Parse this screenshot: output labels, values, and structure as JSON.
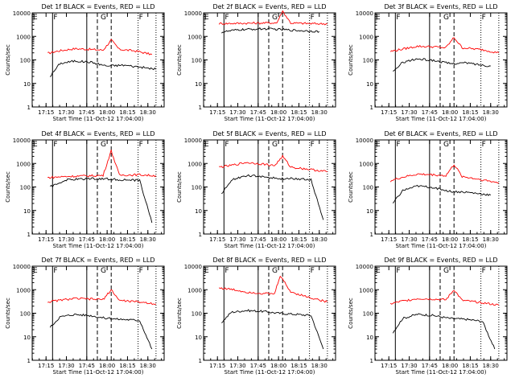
{
  "chart_data": {
    "type": "line",
    "layout": "3x3 grid",
    "y_scale": "log",
    "ylim": [
      1,
      10000
    ],
    "y_ticks": [
      1,
      10,
      100,
      1000,
      10000
    ],
    "y_tick_labels": [
      "1",
      "10",
      "100",
      "1000",
      "10000"
    ],
    "x_ticks": [
      "17:15",
      "17:30",
      "17:45",
      "18:00",
      "18:15",
      "18:30"
    ],
    "ylabel": "Counts/sec",
    "xlabel": "Start Time (11-Oct-12 17:04:00)",
    "colors": {
      "events": "#000000",
      "lld": "#ff0000",
      "markers": "#000000"
    },
    "panels": [
      {
        "title": "Det 1f BLACK = Events, RED = LLD",
        "markers": [
          "E",
          "F",
          "G",
          "F"
        ],
        "lld": [
          [
            17.27,
            190
          ],
          [
            17.4,
            240
          ],
          [
            17.6,
            300
          ],
          [
            17.8,
            280
          ],
          [
            17.95,
            260
          ],
          [
            18.05,
            700
          ],
          [
            18.15,
            280
          ],
          [
            18.35,
            240
          ],
          [
            18.55,
            170
          ]
        ],
        "events": [
          [
            17.3,
            20
          ],
          [
            17.42,
            70
          ],
          [
            17.6,
            90
          ],
          [
            17.8,
            80
          ],
          [
            18.0,
            55
          ],
          [
            18.2,
            60
          ],
          [
            18.4,
            50
          ],
          [
            18.6,
            40
          ]
        ]
      },
      {
        "title": "Det 2f BLACK = Events, RED = LLD",
        "markers": [
          "E",
          "F",
          "G",
          "F"
        ],
        "lld": [
          [
            17.27,
            3500
          ],
          [
            17.5,
            3600
          ],
          [
            17.8,
            3700
          ],
          [
            17.98,
            3800
          ],
          [
            18.05,
            12000
          ],
          [
            18.15,
            3700
          ],
          [
            18.4,
            3500
          ],
          [
            18.6,
            3400
          ]
        ],
        "events": [
          [
            17.3,
            1500
          ],
          [
            17.5,
            1900
          ],
          [
            17.8,
            2100
          ],
          [
            18.0,
            2000
          ],
          [
            18.2,
            1800
          ],
          [
            18.4,
            1700
          ],
          [
            18.5,
            1600
          ]
        ]
      },
      {
        "title": "Det 3f BLACK = Events, RED = LLD",
        "markers": [
          "E",
          "F",
          "G",
          "F"
        ],
        "lld": [
          [
            17.27,
            230
          ],
          [
            17.4,
            280
          ],
          [
            17.6,
            380
          ],
          [
            17.8,
            360
          ],
          [
            17.95,
            330
          ],
          [
            18.05,
            900
          ],
          [
            18.15,
            330
          ],
          [
            18.4,
            270
          ],
          [
            18.6,
            200
          ]
        ],
        "events": [
          [
            17.3,
            30
          ],
          [
            17.42,
            80
          ],
          [
            17.6,
            110
          ],
          [
            17.8,
            95
          ],
          [
            18.0,
            70
          ],
          [
            18.2,
            75
          ],
          [
            18.4,
            60
          ],
          [
            18.5,
            55
          ]
        ]
      },
      {
        "title": "Det 4f BLACK = Events, RED = LLD",
        "markers": [
          "E",
          "F",
          "G",
          "F"
        ],
        "lld": [
          [
            17.27,
            250
          ],
          [
            17.5,
            280
          ],
          [
            17.8,
            300
          ],
          [
            17.95,
            310
          ],
          [
            18.05,
            3500
          ],
          [
            18.15,
            320
          ],
          [
            18.4,
            330
          ],
          [
            18.6,
            300
          ]
        ],
        "events": [
          [
            17.3,
            100
          ],
          [
            17.5,
            200
          ],
          [
            17.8,
            230
          ],
          [
            18.0,
            220
          ],
          [
            18.2,
            200
          ],
          [
            18.4,
            190
          ],
          [
            18.55,
            3
          ]
        ]
      },
      {
        "title": "Det 5f BLACK = Events, RED = LLD",
        "markers": [
          "E",
          "F",
          "G",
          "F"
        ],
        "lld": [
          [
            17.27,
            700
          ],
          [
            17.4,
            800
          ],
          [
            17.6,
            1100
          ],
          [
            17.8,
            950
          ],
          [
            17.95,
            800
          ],
          [
            18.05,
            2000
          ],
          [
            18.15,
            700
          ],
          [
            18.4,
            550
          ],
          [
            18.6,
            450
          ]
        ],
        "events": [
          [
            17.3,
            50
          ],
          [
            17.42,
            200
          ],
          [
            17.6,
            300
          ],
          [
            17.8,
            280
          ],
          [
            18.0,
            220
          ],
          [
            18.2,
            230
          ],
          [
            18.4,
            200
          ],
          [
            18.55,
            4
          ]
        ]
      },
      {
        "title": "Det 6f BLACK = Events, RED = LLD",
        "markers": [
          "E",
          "F",
          "G",
          "F"
        ],
        "lld": [
          [
            17.27,
            180
          ],
          [
            17.4,
            250
          ],
          [
            17.6,
            350
          ],
          [
            17.8,
            330
          ],
          [
            17.95,
            300
          ],
          [
            18.05,
            900
          ],
          [
            18.15,
            280
          ],
          [
            18.4,
            200
          ],
          [
            18.6,
            150
          ]
        ],
        "events": [
          [
            17.3,
            20
          ],
          [
            17.42,
            70
          ],
          [
            17.6,
            110
          ],
          [
            17.8,
            95
          ],
          [
            18.0,
            65
          ],
          [
            18.2,
            60
          ],
          [
            18.4,
            50
          ],
          [
            18.5,
            45
          ]
        ]
      },
      {
        "title": "Det 7f BLACK = Events, RED = LLD",
        "markers": [
          "E",
          "F",
          "G",
          "F"
        ],
        "lld": [
          [
            17.27,
            300
          ],
          [
            17.4,
            350
          ],
          [
            17.6,
            420
          ],
          [
            17.8,
            400
          ],
          [
            17.95,
            380
          ],
          [
            18.05,
            1000
          ],
          [
            18.15,
            350
          ],
          [
            18.4,
            300
          ],
          [
            18.6,
            250
          ]
        ],
        "events": [
          [
            17.3,
            25
          ],
          [
            17.42,
            70
          ],
          [
            17.6,
            90
          ],
          [
            17.8,
            80
          ],
          [
            18.0,
            60
          ],
          [
            18.2,
            55
          ],
          [
            18.4,
            50
          ],
          [
            18.55,
            3
          ]
        ]
      },
      {
        "title": "Det 8f BLACK = Events, RED = LLD",
        "markers": [
          "E",
          "F",
          "G",
          "F"
        ],
        "lld": [
          [
            17.27,
            1200
          ],
          [
            17.45,
            1000
          ],
          [
            17.6,
            800
          ],
          [
            17.8,
            700
          ],
          [
            17.95,
            650
          ],
          [
            18.02,
            4000
          ],
          [
            18.15,
            800
          ],
          [
            18.4,
            450
          ],
          [
            18.6,
            300
          ]
        ],
        "events": [
          [
            17.3,
            40
          ],
          [
            17.42,
            110
          ],
          [
            17.6,
            130
          ],
          [
            17.8,
            120
          ],
          [
            18.0,
            100
          ],
          [
            18.2,
            90
          ],
          [
            18.4,
            80
          ],
          [
            18.55,
            3
          ]
        ]
      },
      {
        "title": "Det 9f BLACK = Events, RED = LLD",
        "markers": [
          "E",
          "F",
          "G",
          "F"
        ],
        "lld": [
          [
            17.27,
            250
          ],
          [
            17.4,
            320
          ],
          [
            17.6,
            420
          ],
          [
            17.8,
            400
          ],
          [
            17.95,
            370
          ],
          [
            18.05,
            1000
          ],
          [
            18.15,
            350
          ],
          [
            18.4,
            280
          ],
          [
            18.6,
            220
          ]
        ],
        "events": [
          [
            17.3,
            15
          ],
          [
            17.42,
            60
          ],
          [
            17.6,
            90
          ],
          [
            17.8,
            80
          ],
          [
            18.0,
            60
          ],
          [
            18.2,
            55
          ],
          [
            18.4,
            45
          ],
          [
            18.55,
            3
          ]
        ]
      }
    ],
    "reference_lines": {
      "solid": [
        17.33,
        17.75
      ],
      "dashed": [
        17.88,
        18.05
      ],
      "dotted": [
        18.38,
        18.6
      ]
    },
    "xlim": [
      17.08,
      18.7
    ]
  }
}
